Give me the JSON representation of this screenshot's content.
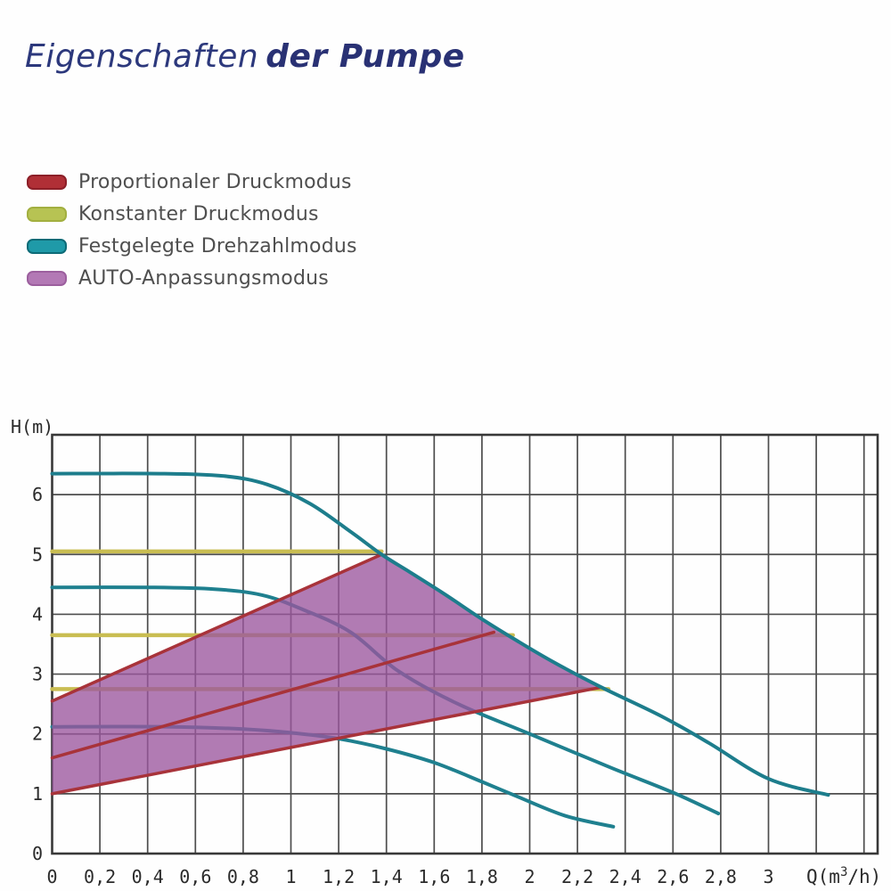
{
  "header": {
    "title_light": "Eigenschaften",
    "title_bold": "der Pumpe",
    "title_color": "#2c387c"
  },
  "legend": {
    "items": [
      {
        "key": "proportional-pressure",
        "label": "Proportionaler Druckmodus",
        "color": "#b02f36",
        "border": "#8c1f28"
      },
      {
        "key": "constant-pressure",
        "label": "Konstanter Druckmodus",
        "color": "#b7c353",
        "border": "#a2af3f"
      },
      {
        "key": "fixed-speed",
        "label": "Festgelegte Drehzahlmodus",
        "color": "#1f9aa8",
        "border": "#0d6b77"
      },
      {
        "key": "auto-adapt",
        "label": "AUTO-Anpassungsmodus",
        "color": "#b379b5",
        "border": "#9c5f9e"
      }
    ]
  },
  "chart_data": {
    "type": "line",
    "title": "",
    "xlabel": "Q(m³/h)",
    "xlabel_parts": {
      "pre": "Q(m",
      "sup": "3",
      "post": "/h)"
    },
    "ylabel": "H(m)",
    "xlim": [
      0,
      3.46
    ],
    "ylim": [
      0,
      7
    ],
    "grid": {
      "x_step": 0.2,
      "y_step": 1,
      "line_color": "#4d4d4d",
      "border_color": "#383838"
    },
    "x_ticks": [
      {
        "q": 0,
        "label": "0"
      },
      {
        "q": 0.2,
        "label": "0,2"
      },
      {
        "q": 0.4,
        "label": "0,4"
      },
      {
        "q": 0.6,
        "label": "0,6"
      },
      {
        "q": 0.8,
        "label": "0,8"
      },
      {
        "q": 1,
        "label": "1"
      },
      {
        "q": 1.2,
        "label": "1,2"
      },
      {
        "q": 1.4,
        "label": "1,4"
      },
      {
        "q": 1.6,
        "label": "1,6"
      },
      {
        "q": 1.8,
        "label": "1,8"
      },
      {
        "q": 2,
        "label": "2"
      },
      {
        "q": 2.2,
        "label": "2,2"
      },
      {
        "q": 2.4,
        "label": "2,4"
      },
      {
        "q": 2.6,
        "label": "2,6"
      },
      {
        "q": 2.8,
        "label": "2,8"
      },
      {
        "q": 3,
        "label": "3"
      }
    ],
    "y_ticks": [
      {
        "h": 0,
        "label": "0"
      },
      {
        "h": 1,
        "label": "1"
      },
      {
        "h": 2,
        "label": "2"
      },
      {
        "h": 3,
        "label": "3"
      },
      {
        "h": 4,
        "label": "4"
      },
      {
        "h": 5,
        "label": "5"
      },
      {
        "h": 6,
        "label": "6"
      }
    ],
    "layers": [
      {
        "id": "constant-pressure-3",
        "mode": "Konstanter Druckmodus III",
        "kind": "line",
        "color": "#c9bd52",
        "width": 4.5,
        "smooth": false,
        "points": [
          [
            0,
            5.05
          ],
          [
            1.38,
            5.05
          ]
        ]
      },
      {
        "id": "constant-pressure-2",
        "mode": "Konstanter Druckmodus II",
        "kind": "line",
        "color": "#c9bd52",
        "width": 4.5,
        "smooth": false,
        "points": [
          [
            0,
            3.65
          ],
          [
            1.93,
            3.65
          ]
        ]
      },
      {
        "id": "constant-pressure-1",
        "mode": "Konstanter Druckmodus I",
        "kind": "line",
        "color": "#c9bd52",
        "width": 4.5,
        "smooth": false,
        "points": [
          [
            0,
            2.75
          ],
          [
            2.33,
            2.75
          ]
        ]
      },
      {
        "id": "fixed-speed-1",
        "mode": "Festgelegte Drehzahl I",
        "kind": "line",
        "color": "#1f808f",
        "width": 4,
        "smooth": true,
        "points": [
          [
            0,
            2.12
          ],
          [
            0.5,
            2.12
          ],
          [
            0.8,
            2.08
          ],
          [
            1.0,
            2.02
          ],
          [
            1.2,
            1.92
          ],
          [
            1.4,
            1.75
          ],
          [
            1.6,
            1.52
          ],
          [
            1.8,
            1.2
          ],
          [
            1.95,
            0.95
          ],
          [
            2.15,
            0.63
          ],
          [
            2.35,
            0.45
          ]
        ]
      },
      {
        "id": "fixed-speed-2",
        "mode": "Festgelegte Drehzahl II",
        "kind": "line",
        "color": "#1f808f",
        "width": 4,
        "smooth": true,
        "points": [
          [
            0,
            4.45
          ],
          [
            0.4,
            4.45
          ],
          [
            0.68,
            4.42
          ],
          [
            0.88,
            4.32
          ],
          [
            1.05,
            4.08
          ],
          [
            1.25,
            3.7
          ],
          [
            1.45,
            3.05
          ],
          [
            1.7,
            2.5
          ],
          [
            2.0,
            2.0
          ],
          [
            2.35,
            1.42
          ],
          [
            2.6,
            1.02
          ],
          [
            2.79,
            0.67
          ]
        ]
      },
      {
        "id": "auto-adapt-region",
        "mode": "AUTO-Anpassungsmodus",
        "kind": "area",
        "fill": "#9b569d",
        "opacity": 0.78,
        "points": [
          [
            0,
            1.0
          ],
          [
            0,
            2.55
          ],
          [
            1.38,
            5.0
          ],
          [
            1.5,
            4.7
          ],
          [
            1.65,
            4.32
          ],
          [
            1.8,
            3.92
          ],
          [
            1.95,
            3.55
          ],
          [
            2.1,
            3.2
          ],
          [
            2.2,
            2.99
          ],
          [
            2.3,
            2.78
          ]
        ]
      },
      {
        "id": "proportional-pressure-2",
        "mode": "Proportionaler Druckmodus II",
        "kind": "line",
        "color": "#a8333a",
        "width": 3.5,
        "smooth": false,
        "points": [
          [
            0,
            1.6
          ],
          [
            1.85,
            3.7
          ]
        ]
      },
      {
        "id": "proportional-pressure-1",
        "mode": "Proportionaler Druckmodus I",
        "kind": "line",
        "color": "#a8333a",
        "width": 3.5,
        "smooth": false,
        "points": [
          [
            0,
            1.0
          ],
          [
            2.3,
            2.78
          ]
        ]
      },
      {
        "id": "proportional-pressure-3",
        "mode": "Proportionaler Druckmodus III",
        "kind": "line",
        "color": "#a8333a",
        "width": 3.5,
        "smooth": false,
        "points": [
          [
            0,
            2.55
          ],
          [
            1.38,
            5.0
          ]
        ]
      },
      {
        "id": "fixed-speed-3",
        "mode": "Festgelegte Drehzahl III",
        "kind": "line",
        "color": "#1d7d8c",
        "width": 4,
        "smooth": true,
        "points": [
          [
            0,
            6.35
          ],
          [
            0.45,
            6.35
          ],
          [
            0.72,
            6.31
          ],
          [
            0.9,
            6.17
          ],
          [
            1.08,
            5.85
          ],
          [
            1.25,
            5.38
          ],
          [
            1.38,
            5.0
          ],
          [
            1.5,
            4.7
          ],
          [
            1.65,
            4.32
          ],
          [
            1.8,
            3.92
          ],
          [
            1.95,
            3.55
          ],
          [
            2.1,
            3.2
          ],
          [
            2.3,
            2.78
          ],
          [
            2.55,
            2.3
          ],
          [
            2.75,
            1.85
          ],
          [
            3.0,
            1.25
          ],
          [
            3.25,
            0.98
          ]
        ]
      }
    ]
  }
}
